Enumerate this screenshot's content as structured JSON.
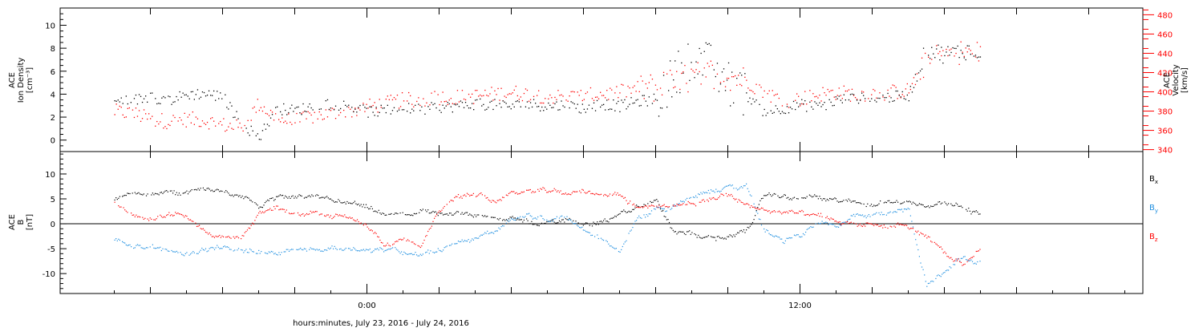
{
  "colors": {
    "black": "#000000",
    "red": "#ff0000",
    "blue": "#1f8fe0"
  },
  "xlabel": "hours:minutes, July 23, 2016 - July 24, 2016",
  "x_ticks": [
    "0:00",
    "12:00"
  ],
  "chart_data": [
    {
      "type": "scatter",
      "panel": "top",
      "ylabel_left": [
        "ACE",
        "Ion Density",
        "[cm⁻³]"
      ],
      "ylabel_right": [
        "ACE",
        "Velocity",
        "[km/s]"
      ],
      "ylim": [
        -1,
        11.5
      ],
      "yticks": [
        0,
        2,
        4,
        6,
        8,
        10
      ],
      "y2lim": [
        338,
        487
      ],
      "y2ticks": [
        340,
        360,
        380,
        400,
        420,
        440,
        460,
        480
      ],
      "x_unit": "hours from 2016-07-23 00:00",
      "series": [
        {
          "color": "black",
          "axis": "left",
          "x": [
            -7,
            -6.5,
            -6,
            -5.5,
            -5,
            -4.5,
            -4,
            -3.5,
            -3,
            -2.5,
            -2,
            -1.5,
            -1,
            -0.5,
            0,
            0.5,
            1,
            1.5,
            2,
            2.5,
            3,
            3.5,
            4,
            4.5,
            5,
            5.5,
            6,
            6.5,
            7,
            7.5,
            8,
            8.5,
            9,
            9.5,
            10,
            10.5,
            11,
            11.5,
            12,
            12.5,
            13,
            13.5,
            14,
            14.5,
            15,
            15.5,
            16,
            16.5,
            17
          ],
          "values": [
            3.4,
            3.5,
            3.8,
            3.5,
            4.0,
            4.1,
            3.8,
            1.5,
            0.3,
            2.8,
            2.6,
            3.0,
            3.2,
            3.0,
            2.5,
            2.6,
            2.8,
            2.7,
            2.9,
            3.0,
            3.2,
            3.1,
            3.0,
            3.2,
            3.0,
            3.1,
            2.8,
            3.2,
            3.0,
            3.4,
            3.6,
            5.5,
            7.5,
            6.5,
            5.0,
            4.0,
            2.5,
            2.8,
            3.1,
            2.9,
            3.5,
            3.7,
            3.6,
            3.8,
            3.9,
            8.0,
            7.5,
            7.8,
            7.9
          ]
        },
        {
          "color": "red",
          "axis": "right",
          "x": [
            -7,
            -6.5,
            -6,
            -5.5,
            -5,
            -4.5,
            -4,
            -3.5,
            -3,
            -2.5,
            -2,
            -1.5,
            -1,
            -0.5,
            0,
            0.5,
            1,
            1.5,
            2,
            2.5,
            3,
            3.5,
            4,
            4.5,
            5,
            5.5,
            6,
            6.5,
            7,
            7.5,
            8,
            8.5,
            9,
            9.5,
            10,
            10.5,
            11,
            11.5,
            12,
            12.5,
            13,
            13.5,
            14,
            14.5,
            15,
            15.5,
            16,
            16.5,
            17
          ],
          "values": [
            380,
            378,
            372,
            370,
            372,
            371,
            366,
            363,
            388,
            372,
            370,
            375,
            378,
            380,
            385,
            388,
            392,
            392,
            395,
            395,
            396,
            398,
            400,
            398,
            396,
            395,
            396,
            398,
            400,
            404,
            405,
            410,
            415,
            420,
            418,
            412,
            400,
            392,
            393,
            398,
            400,
            398,
            399,
            400,
            402,
            432,
            440,
            442,
            440
          ]
        }
      ]
    },
    {
      "type": "scatter",
      "panel": "bottom",
      "ylabel_left": [
        "ACE",
        "B",
        "[nT]"
      ],
      "ylim": [
        -14,
        14.5
      ],
      "yticks": [
        -10,
        -5,
        0,
        5,
        10
      ],
      "x_unit": "hours from 2016-07-23 00:00",
      "legend": [
        "Bx",
        "By",
        "Bz"
      ],
      "series": [
        {
          "name": "Bx",
          "color": "black",
          "x": [
            -7,
            -6.5,
            -6,
            -5.5,
            -5,
            -4.5,
            -4,
            -3.5,
            -3,
            -2.5,
            -2,
            -1.5,
            -1,
            -0.5,
            0,
            0.5,
            1,
            1.5,
            2,
            2.5,
            3,
            3.5,
            4,
            4.5,
            5,
            5.5,
            6,
            6.5,
            7,
            7.5,
            8,
            8.5,
            9,
            9.5,
            10,
            10.5,
            11,
            11.5,
            12,
            12.5,
            13,
            13.5,
            14,
            14.5,
            15,
            15.5,
            16,
            16.5,
            17
          ],
          "values": [
            5.0,
            6.0,
            5.8,
            6.0,
            6.2,
            6.8,
            6.5,
            6.0,
            4.0,
            5.5,
            5.2,
            5.0,
            4.6,
            4.0,
            3.0,
            1.5,
            1.5,
            2.5,
            2.5,
            2.0,
            1.5,
            1.8,
            1.5,
            0.5,
            0.2,
            1.0,
            0.5,
            0.5,
            1.5,
            3.5,
            4.5,
            -1.5,
            -2.5,
            -3.0,
            -2.2,
            -1.5,
            6.0,
            5.5,
            5.0,
            5.0,
            4.8,
            4.6,
            4.5,
            4.5,
            4.6,
            4.0,
            4.5,
            3.0,
            2.0
          ]
        },
        {
          "name": "By",
          "color": "blue",
          "x": [
            -7,
            -6.5,
            -6,
            -5.5,
            -5,
            -4.5,
            -4,
            -3.5,
            -3,
            -2.5,
            -2,
            -1.5,
            -1,
            -0.5,
            0,
            0.5,
            1,
            1.5,
            2,
            2.5,
            3,
            3.5,
            4,
            4.5,
            5,
            5.5,
            6,
            6.5,
            7,
            7.5,
            8,
            8.5,
            9,
            9.5,
            10,
            10.5,
            11,
            11.5,
            12,
            12.5,
            13,
            13.5,
            14,
            14.5,
            15,
            15.5,
            16,
            16.5,
            17
          ],
          "values": [
            -3.0,
            -5.0,
            -5.0,
            -5.2,
            -5.5,
            -5.0,
            -4.5,
            -5.0,
            -5.8,
            -5.5,
            -5.0,
            -4.8,
            -5.0,
            -5.2,
            -5.5,
            -5.0,
            -6.0,
            -5.5,
            -5.0,
            -4.0,
            -3.0,
            -1.5,
            1.0,
            1.5,
            1.0,
            1.5,
            -1.0,
            -3.0,
            -5.5,
            1.5,
            3.0,
            4.0,
            5.0,
            6.5,
            7.5,
            7.5,
            -1.5,
            -3.5,
            -2.0,
            0.5,
            0.5,
            1.5,
            2.0,
            2.5,
            3.0,
            -12.5,
            -10.0,
            -7.0,
            -8.0
          ]
        },
        {
          "name": "Bz",
          "color": "red",
          "x": [
            -7,
            -6.5,
            -6,
            -5.5,
            -5,
            -4.5,
            -4,
            -3.5,
            -3,
            -2.5,
            -2,
            -1.5,
            -1,
            -0.5,
            0,
            0.5,
            1,
            1.5,
            2,
            2.5,
            3,
            3.5,
            4,
            4.5,
            5,
            5.5,
            6,
            6.5,
            7,
            7.5,
            8,
            8.5,
            9,
            9.5,
            10,
            10.5,
            11,
            11.5,
            12,
            12.5,
            13,
            13.5,
            14,
            14.5,
            15,
            15.5,
            16,
            16.5,
            17
          ],
          "values": [
            4.0,
            2.0,
            1.0,
            2.5,
            1.5,
            -1.0,
            -2.5,
            -3.0,
            2.5,
            3.0,
            2.5,
            2.5,
            2.0,
            1.5,
            -1.0,
            -4.0,
            -3.0,
            -4.0,
            3.0,
            5.5,
            6.0,
            5.0,
            6.5,
            7.0,
            6.8,
            6.5,
            6.0,
            6.5,
            6.0,
            3.0,
            3.5,
            4.0,
            4.5,
            5.0,
            5.5,
            4.0,
            3.0,
            2.5,
            2.0,
            1.5,
            0.5,
            0.0,
            0.0,
            -0.5,
            -0.5,
            -3.0,
            -6.0,
            -8.5,
            -4.5
          ]
        }
      ]
    }
  ]
}
